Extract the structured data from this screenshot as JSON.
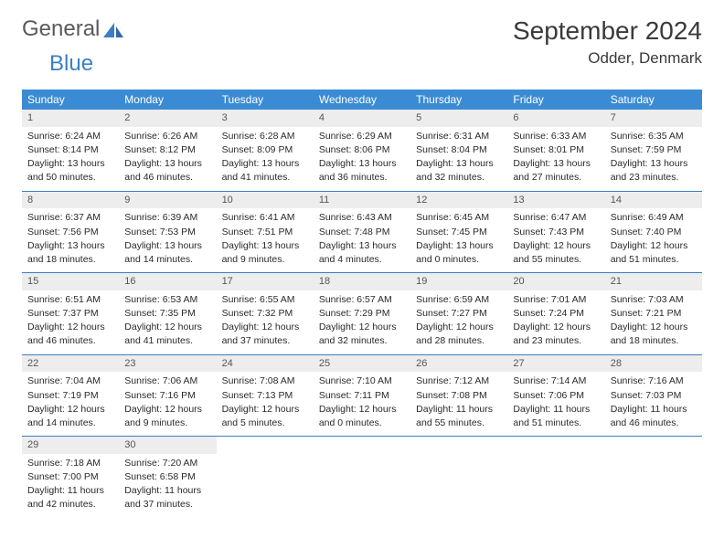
{
  "logo": {
    "word1": "General",
    "word2": "Blue"
  },
  "title": "September 2024",
  "location": "Odder, Denmark",
  "colors": {
    "header_bg": "#3b8bd4",
    "header_text": "#ffffff",
    "daynum_bg": "#ededed",
    "daynum_text": "#555555",
    "divider": "#3b7fc4",
    "body_text": "#2a2a2a",
    "logo_gray": "#5a5a5a",
    "logo_blue": "#3b7fc4"
  },
  "weekdays": [
    "Sunday",
    "Monday",
    "Tuesday",
    "Wednesday",
    "Thursday",
    "Friday",
    "Saturday"
  ],
  "weeks": [
    [
      {
        "n": "1",
        "sr": "Sunrise: 6:24 AM",
        "ss": "Sunset: 8:14 PM",
        "d1": "Daylight: 13 hours",
        "d2": "and 50 minutes."
      },
      {
        "n": "2",
        "sr": "Sunrise: 6:26 AM",
        "ss": "Sunset: 8:12 PM",
        "d1": "Daylight: 13 hours",
        "d2": "and 46 minutes."
      },
      {
        "n": "3",
        "sr": "Sunrise: 6:28 AM",
        "ss": "Sunset: 8:09 PM",
        "d1": "Daylight: 13 hours",
        "d2": "and 41 minutes."
      },
      {
        "n": "4",
        "sr": "Sunrise: 6:29 AM",
        "ss": "Sunset: 8:06 PM",
        "d1": "Daylight: 13 hours",
        "d2": "and 36 minutes."
      },
      {
        "n": "5",
        "sr": "Sunrise: 6:31 AM",
        "ss": "Sunset: 8:04 PM",
        "d1": "Daylight: 13 hours",
        "d2": "and 32 minutes."
      },
      {
        "n": "6",
        "sr": "Sunrise: 6:33 AM",
        "ss": "Sunset: 8:01 PM",
        "d1": "Daylight: 13 hours",
        "d2": "and 27 minutes."
      },
      {
        "n": "7",
        "sr": "Sunrise: 6:35 AM",
        "ss": "Sunset: 7:59 PM",
        "d1": "Daylight: 13 hours",
        "d2": "and 23 minutes."
      }
    ],
    [
      {
        "n": "8",
        "sr": "Sunrise: 6:37 AM",
        "ss": "Sunset: 7:56 PM",
        "d1": "Daylight: 13 hours",
        "d2": "and 18 minutes."
      },
      {
        "n": "9",
        "sr": "Sunrise: 6:39 AM",
        "ss": "Sunset: 7:53 PM",
        "d1": "Daylight: 13 hours",
        "d2": "and 14 minutes."
      },
      {
        "n": "10",
        "sr": "Sunrise: 6:41 AM",
        "ss": "Sunset: 7:51 PM",
        "d1": "Daylight: 13 hours",
        "d2": "and 9 minutes."
      },
      {
        "n": "11",
        "sr": "Sunrise: 6:43 AM",
        "ss": "Sunset: 7:48 PM",
        "d1": "Daylight: 13 hours",
        "d2": "and 4 minutes."
      },
      {
        "n": "12",
        "sr": "Sunrise: 6:45 AM",
        "ss": "Sunset: 7:45 PM",
        "d1": "Daylight: 13 hours",
        "d2": "and 0 minutes."
      },
      {
        "n": "13",
        "sr": "Sunrise: 6:47 AM",
        "ss": "Sunset: 7:43 PM",
        "d1": "Daylight: 12 hours",
        "d2": "and 55 minutes."
      },
      {
        "n": "14",
        "sr": "Sunrise: 6:49 AM",
        "ss": "Sunset: 7:40 PM",
        "d1": "Daylight: 12 hours",
        "d2": "and 51 minutes."
      }
    ],
    [
      {
        "n": "15",
        "sr": "Sunrise: 6:51 AM",
        "ss": "Sunset: 7:37 PM",
        "d1": "Daylight: 12 hours",
        "d2": "and 46 minutes."
      },
      {
        "n": "16",
        "sr": "Sunrise: 6:53 AM",
        "ss": "Sunset: 7:35 PM",
        "d1": "Daylight: 12 hours",
        "d2": "and 41 minutes."
      },
      {
        "n": "17",
        "sr": "Sunrise: 6:55 AM",
        "ss": "Sunset: 7:32 PM",
        "d1": "Daylight: 12 hours",
        "d2": "and 37 minutes."
      },
      {
        "n": "18",
        "sr": "Sunrise: 6:57 AM",
        "ss": "Sunset: 7:29 PM",
        "d1": "Daylight: 12 hours",
        "d2": "and 32 minutes."
      },
      {
        "n": "19",
        "sr": "Sunrise: 6:59 AM",
        "ss": "Sunset: 7:27 PM",
        "d1": "Daylight: 12 hours",
        "d2": "and 28 minutes."
      },
      {
        "n": "20",
        "sr": "Sunrise: 7:01 AM",
        "ss": "Sunset: 7:24 PM",
        "d1": "Daylight: 12 hours",
        "d2": "and 23 minutes."
      },
      {
        "n": "21",
        "sr": "Sunrise: 7:03 AM",
        "ss": "Sunset: 7:21 PM",
        "d1": "Daylight: 12 hours",
        "d2": "and 18 minutes."
      }
    ],
    [
      {
        "n": "22",
        "sr": "Sunrise: 7:04 AM",
        "ss": "Sunset: 7:19 PM",
        "d1": "Daylight: 12 hours",
        "d2": "and 14 minutes."
      },
      {
        "n": "23",
        "sr": "Sunrise: 7:06 AM",
        "ss": "Sunset: 7:16 PM",
        "d1": "Daylight: 12 hours",
        "d2": "and 9 minutes."
      },
      {
        "n": "24",
        "sr": "Sunrise: 7:08 AM",
        "ss": "Sunset: 7:13 PM",
        "d1": "Daylight: 12 hours",
        "d2": "and 5 minutes."
      },
      {
        "n": "25",
        "sr": "Sunrise: 7:10 AM",
        "ss": "Sunset: 7:11 PM",
        "d1": "Daylight: 12 hours",
        "d2": "and 0 minutes."
      },
      {
        "n": "26",
        "sr": "Sunrise: 7:12 AM",
        "ss": "Sunset: 7:08 PM",
        "d1": "Daylight: 11 hours",
        "d2": "and 55 minutes."
      },
      {
        "n": "27",
        "sr": "Sunrise: 7:14 AM",
        "ss": "Sunset: 7:06 PM",
        "d1": "Daylight: 11 hours",
        "d2": "and 51 minutes."
      },
      {
        "n": "28",
        "sr": "Sunrise: 7:16 AM",
        "ss": "Sunset: 7:03 PM",
        "d1": "Daylight: 11 hours",
        "d2": "and 46 minutes."
      }
    ],
    [
      {
        "n": "29",
        "sr": "Sunrise: 7:18 AM",
        "ss": "Sunset: 7:00 PM",
        "d1": "Daylight: 11 hours",
        "d2": "and 42 minutes."
      },
      {
        "n": "30",
        "sr": "Sunrise: 7:20 AM",
        "ss": "Sunset: 6:58 PM",
        "d1": "Daylight: 11 hours",
        "d2": "and 37 minutes."
      },
      null,
      null,
      null,
      null,
      null
    ]
  ]
}
